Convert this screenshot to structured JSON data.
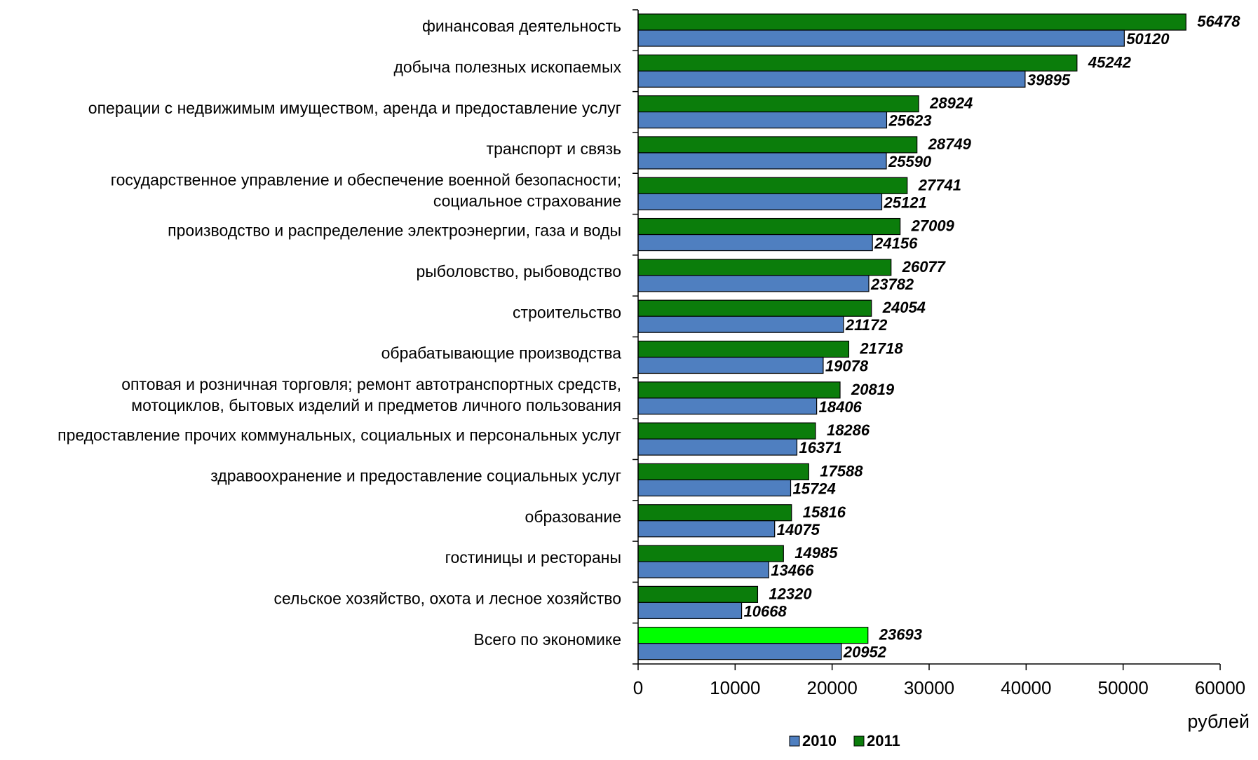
{
  "chart_data": {
    "type": "bar",
    "orientation": "horizontal",
    "categories": [
      [
        "финансовая деятельность"
      ],
      [
        "добыча полезных ископаемых"
      ],
      [
        "операции с недвижимым имуществом, аренда и предоставление услуг"
      ],
      [
        "транспорт и связь"
      ],
      [
        "государственное управление и обеспечение военной безопасности;",
        "социальное страхование"
      ],
      [
        "производство и распределение электроэнергии, газа и воды"
      ],
      [
        "рыболовство, рыбоводство"
      ],
      [
        "строительство"
      ],
      [
        "обрабатывающие производства"
      ],
      [
        "оптовая и розничная торговля; ремонт автотранспортных средств,",
        "мотоциклов, бытовых изделий и предметов личного пользования"
      ],
      [
        "предоставление прочих коммунальных, социальных и персональных услуг"
      ],
      [
        "здравоохранение и предоставление социальных услуг"
      ],
      [
        "образование"
      ],
      [
        "гостиницы и рестораны"
      ],
      [
        "сельское хозяйство, охота и лесное хозяйство"
      ],
      [
        "Всего по экономике"
      ]
    ],
    "series": [
      {
        "name": "2011",
        "color": "#0b7d0b",
        "highlight_color": "#00ff00",
        "highlight_index": 15,
        "values": [
          56478,
          45242,
          28924,
          28749,
          27741,
          27009,
          26077,
          24054,
          21718,
          20819,
          18286,
          17588,
          15816,
          14985,
          12320,
          23693
        ]
      },
      {
        "name": "2010",
        "color": "#4f7fc0",
        "values": [
          50120,
          39895,
          25623,
          25590,
          25121,
          24156,
          23782,
          21172,
          19078,
          18406,
          16371,
          15724,
          14075,
          13466,
          10668,
          20952
        ]
      }
    ],
    "xlim": [
      0,
      60000
    ],
    "xticks": [
      0,
      10000,
      20000,
      30000,
      40000,
      50000,
      60000
    ],
    "xlabel": "рублей",
    "legend": {
      "position": "bottom-center",
      "order": [
        "2010",
        "2011"
      ]
    },
    "grid": false
  }
}
